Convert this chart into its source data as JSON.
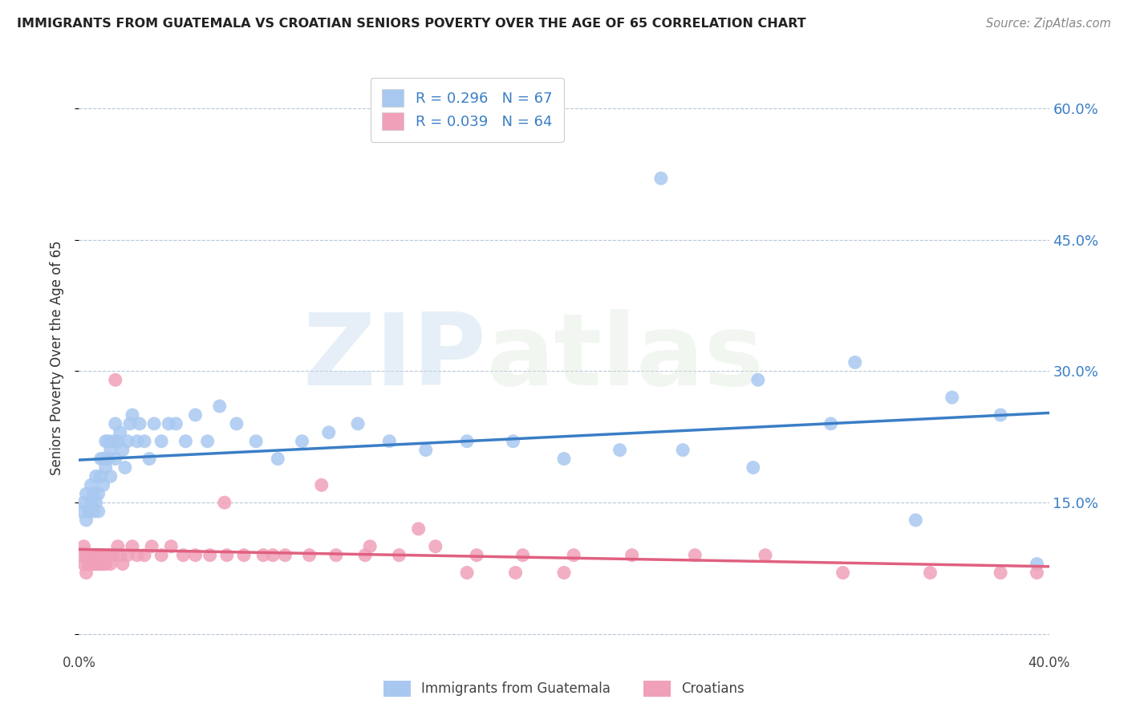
{
  "title": "IMMIGRANTS FROM GUATEMALA VS CROATIAN SENIORS POVERTY OVER THE AGE OF 65 CORRELATION CHART",
  "source": "Source: ZipAtlas.com",
  "ylabel": "Seniors Poverty Over the Age of 65",
  "yticks": [
    0.0,
    0.15,
    0.3,
    0.45,
    0.6
  ],
  "right_ytick_labels": [
    "",
    "15.0%",
    "30.0%",
    "45.0%",
    "60.0%"
  ],
  "xlim": [
    0.0,
    0.4
  ],
  "ylim": [
    -0.02,
    0.65
  ],
  "series1_color": "#A8C8F0",
  "series2_color": "#F0A0B8",
  "trendline1_color": "#3A7EC6",
  "trendline2_color": "#E06080",
  "R1": 0.296,
  "N1": 67,
  "R2": 0.039,
  "N2": 64,
  "watermark_top": "ZIP",
  "watermark_bot": "atlas",
  "legend1_label": "Immigrants from Guatemala",
  "legend2_label": "Croatians",
  "series1_x": [
    0.001,
    0.002,
    0.003,
    0.003,
    0.004,
    0.005,
    0.005,
    0.006,
    0.006,
    0.007,
    0.007,
    0.008,
    0.008,
    0.009,
    0.009,
    0.01,
    0.01,
    0.011,
    0.011,
    0.012,
    0.012,
    0.013,
    0.013,
    0.014,
    0.015,
    0.015,
    0.016,
    0.017,
    0.018,
    0.019,
    0.02,
    0.021,
    0.022,
    0.024,
    0.025,
    0.027,
    0.029,
    0.031,
    0.034,
    0.037,
    0.04,
    0.044,
    0.048,
    0.053,
    0.058,
    0.065,
    0.073,
    0.082,
    0.092,
    0.103,
    0.115,
    0.128,
    0.143,
    0.16,
    0.179,
    0.2,
    0.223,
    0.249,
    0.278,
    0.31,
    0.345,
    0.36,
    0.38,
    0.395,
    0.32,
    0.28,
    0.24
  ],
  "series1_y": [
    0.14,
    0.15,
    0.13,
    0.16,
    0.14,
    0.15,
    0.17,
    0.14,
    0.16,
    0.15,
    0.18,
    0.16,
    0.14,
    0.18,
    0.2,
    0.17,
    0.2,
    0.19,
    0.22,
    0.2,
    0.22,
    0.21,
    0.18,
    0.22,
    0.24,
    0.2,
    0.22,
    0.23,
    0.21,
    0.19,
    0.22,
    0.24,
    0.25,
    0.22,
    0.24,
    0.22,
    0.2,
    0.24,
    0.22,
    0.24,
    0.24,
    0.22,
    0.25,
    0.22,
    0.26,
    0.24,
    0.22,
    0.2,
    0.22,
    0.23,
    0.24,
    0.22,
    0.21,
    0.22,
    0.22,
    0.2,
    0.21,
    0.21,
    0.19,
    0.24,
    0.13,
    0.27,
    0.25,
    0.08,
    0.31,
    0.29,
    0.52
  ],
  "series2_x": [
    0.001,
    0.002,
    0.002,
    0.003,
    0.003,
    0.004,
    0.004,
    0.005,
    0.005,
    0.006,
    0.006,
    0.007,
    0.007,
    0.008,
    0.008,
    0.009,
    0.009,
    0.01,
    0.01,
    0.011,
    0.012,
    0.013,
    0.014,
    0.015,
    0.016,
    0.017,
    0.018,
    0.02,
    0.022,
    0.024,
    0.027,
    0.03,
    0.034,
    0.038,
    0.043,
    0.048,
    0.054,
    0.061,
    0.068,
    0.076,
    0.085,
    0.095,
    0.106,
    0.118,
    0.132,
    0.147,
    0.164,
    0.183,
    0.204,
    0.228,
    0.254,
    0.283,
    0.315,
    0.351,
    0.38,
    0.395,
    0.06,
    0.08,
    0.1,
    0.12,
    0.14,
    0.16,
    0.18,
    0.2
  ],
  "series2_y": [
    0.09,
    0.1,
    0.08,
    0.09,
    0.07,
    0.09,
    0.08,
    0.08,
    0.09,
    0.08,
    0.09,
    0.08,
    0.09,
    0.08,
    0.09,
    0.08,
    0.09,
    0.08,
    0.09,
    0.08,
    0.09,
    0.08,
    0.09,
    0.29,
    0.1,
    0.09,
    0.08,
    0.09,
    0.1,
    0.09,
    0.09,
    0.1,
    0.09,
    0.1,
    0.09,
    0.09,
    0.09,
    0.09,
    0.09,
    0.09,
    0.09,
    0.09,
    0.09,
    0.09,
    0.09,
    0.1,
    0.09,
    0.09,
    0.09,
    0.09,
    0.09,
    0.09,
    0.07,
    0.07,
    0.07,
    0.07,
    0.15,
    0.09,
    0.17,
    0.1,
    0.12,
    0.07,
    0.07,
    0.07
  ]
}
